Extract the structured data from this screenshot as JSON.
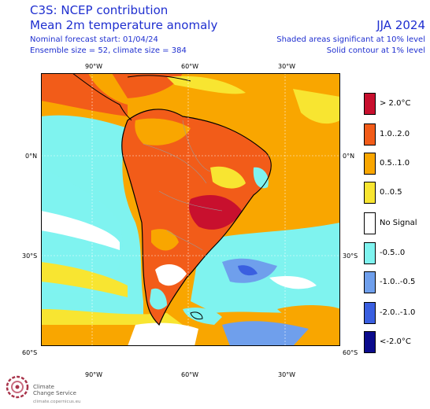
{
  "header": {
    "title": "C3S: NCEP contribution",
    "subtitle": "Mean 2m temperature anomaly",
    "forecast_start": "Nominal forecast start: 01/04/24",
    "ensemble": "Ensemble size = 52, climate size = 384",
    "season": "JJA 2024",
    "significance_shaded": "Shaded areas significant at 10% level",
    "significance_contour": "Solid contour at 1% level"
  },
  "axes": {
    "top": [
      "90°W",
      "60°W",
      "30°W"
    ],
    "bottom": [
      "90°W",
      "60°W",
      "30°W"
    ],
    "left": [
      "0°N",
      "30°S",
      "60°S"
    ],
    "right": [
      "0°N",
      "30°S",
      "60°S"
    ]
  },
  "legend": [
    {
      "label": "> 2.0°C",
      "color": "#c8102e"
    },
    {
      "label": "1.0..2.0",
      "color": "#f25c19"
    },
    {
      "label": "0.5..1.0",
      "color": "#f9a600"
    },
    {
      "label": "0..0.5",
      "color": "#f8e531"
    },
    {
      "label": "No Signal",
      "color": "#ffffff"
    },
    {
      "label": "-0.5..0",
      "color": "#7ff3ef"
    },
    {
      "label": "-1.0..-0.5",
      "color": "#6f9fec"
    },
    {
      "label": "-2.0..-1.0",
      "color": "#3a5fe0"
    },
    {
      "label": "<-2.0°C",
      "color": "#0b0b8c"
    }
  ],
  "logo": {
    "line1": "Climate",
    "line2": "Change Service",
    "url": "climate.copernicus.eu"
  }
}
